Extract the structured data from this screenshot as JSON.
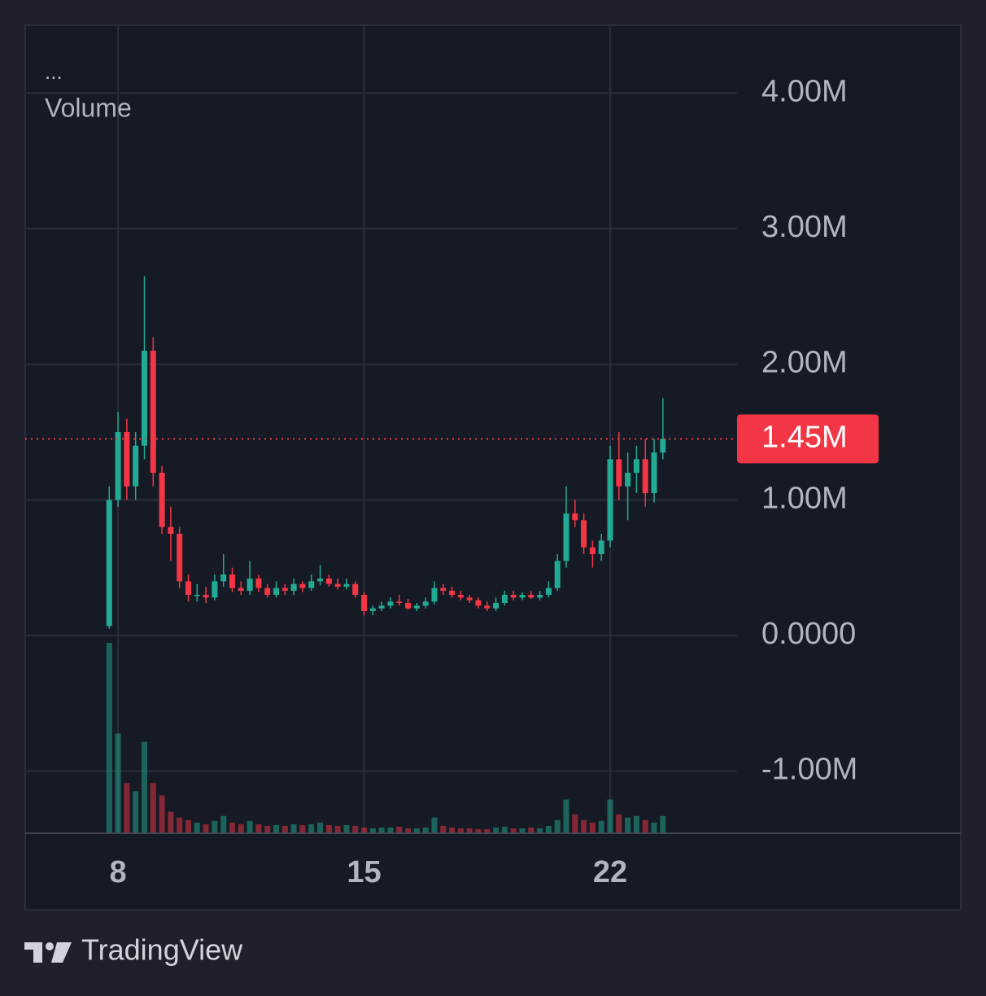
{
  "chart_data": {
    "type": "candlestick",
    "menu": "...",
    "indicator_label": "Volume",
    "x": [
      7.75,
      8.0,
      8.25,
      8.5,
      8.75,
      9.0,
      9.25,
      9.5,
      9.75,
      10.0,
      10.25,
      10.5,
      10.75,
      11.0,
      11.25,
      11.5,
      11.75,
      12.0,
      12.25,
      12.5,
      12.75,
      13.0,
      13.25,
      13.5,
      13.75,
      14.0,
      14.25,
      14.5,
      14.75,
      15.0,
      15.25,
      15.5,
      15.75,
      16.0,
      16.25,
      16.5,
      16.75,
      17.0,
      17.25,
      17.5,
      17.75,
      18.0,
      18.25,
      18.5,
      18.75,
      19.0,
      19.25,
      19.5,
      19.75,
      20.0,
      20.25,
      20.5,
      20.75,
      21.0,
      21.25,
      21.5,
      21.75,
      22.0,
      22.25,
      22.5,
      22.75,
      23.0,
      23.25,
      23.5
    ],
    "open": [
      0.07,
      1.0,
      1.5,
      1.1,
      1.4,
      2.1,
      1.2,
      0.8,
      0.75,
      0.4,
      0.3,
      0.3,
      0.28,
      0.4,
      0.45,
      0.35,
      0.33,
      0.42,
      0.35,
      0.3,
      0.35,
      0.33,
      0.38,
      0.35,
      0.4,
      0.42,
      0.38,
      0.36,
      0.38,
      0.3,
      0.18,
      0.2,
      0.22,
      0.25,
      0.24,
      0.2,
      0.22,
      0.25,
      0.35,
      0.33,
      0.3,
      0.28,
      0.26,
      0.22,
      0.2,
      0.24,
      0.3,
      0.28,
      0.3,
      0.28,
      0.3,
      0.35,
      0.55,
      0.9,
      0.85,
      0.65,
      0.6,
      0.7,
      1.3,
      1.1,
      1.2,
      1.3,
      1.05,
      1.35
    ],
    "high": [
      1.1,
      1.65,
      1.6,
      1.5,
      2.65,
      2.2,
      1.25,
      0.95,
      0.8,
      0.45,
      0.38,
      0.36,
      0.45,
      0.6,
      0.5,
      0.4,
      0.55,
      0.45,
      0.38,
      0.4,
      0.38,
      0.42,
      0.4,
      0.45,
      0.52,
      0.45,
      0.42,
      0.42,
      0.4,
      0.32,
      0.22,
      0.25,
      0.28,
      0.3,
      0.27,
      0.24,
      0.28,
      0.4,
      0.38,
      0.36,
      0.33,
      0.3,
      0.28,
      0.25,
      0.28,
      0.33,
      0.33,
      0.32,
      0.33,
      0.33,
      0.4,
      0.6,
      1.1,
      1.0,
      0.9,
      0.7,
      0.75,
      1.4,
      1.5,
      1.35,
      1.4,
      1.45,
      1.45,
      1.75
    ],
    "low": [
      0.05,
      0.95,
      1.0,
      1.0,
      1.3,
      1.1,
      0.75,
      0.55,
      0.35,
      0.25,
      0.25,
      0.24,
      0.26,
      0.36,
      0.32,
      0.3,
      0.3,
      0.32,
      0.28,
      0.28,
      0.3,
      0.3,
      0.32,
      0.33,
      0.37,
      0.36,
      0.34,
      0.34,
      0.28,
      0.15,
      0.15,
      0.18,
      0.2,
      0.22,
      0.19,
      0.18,
      0.2,
      0.23,
      0.3,
      0.28,
      0.26,
      0.24,
      0.2,
      0.18,
      0.18,
      0.22,
      0.26,
      0.26,
      0.27,
      0.26,
      0.28,
      0.33,
      0.5,
      0.8,
      0.6,
      0.5,
      0.55,
      0.65,
      1.0,
      0.85,
      1.05,
      0.95,
      0.98,
      1.3
    ],
    "close": [
      1.0,
      1.5,
      1.1,
      1.4,
      2.1,
      1.2,
      0.8,
      0.75,
      0.4,
      0.3,
      0.3,
      0.28,
      0.4,
      0.45,
      0.35,
      0.33,
      0.42,
      0.35,
      0.3,
      0.35,
      0.33,
      0.38,
      0.35,
      0.4,
      0.42,
      0.38,
      0.36,
      0.38,
      0.3,
      0.18,
      0.2,
      0.22,
      0.25,
      0.24,
      0.2,
      0.22,
      0.25,
      0.35,
      0.33,
      0.3,
      0.28,
      0.26,
      0.22,
      0.2,
      0.24,
      0.3,
      0.28,
      0.3,
      0.28,
      0.3,
      0.35,
      0.55,
      0.9,
      0.85,
      0.65,
      0.6,
      0.7,
      1.3,
      1.1,
      1.2,
      1.3,
      1.05,
      1.35,
      1.45
    ],
    "volume": [
      230,
      120,
      60,
      50,
      110,
      60,
      45,
      25,
      18,
      15,
      12,
      10,
      14,
      20,
      12,
      10,
      14,
      10,
      8,
      9,
      8,
      10,
      9,
      10,
      12,
      9,
      8,
      9,
      8,
      6,
      5,
      6,
      6,
      7,
      5,
      5,
      6,
      18,
      8,
      6,
      5,
      5,
      4,
      4,
      6,
      7,
      5,
      5,
      6,
      5,
      8,
      15,
      40,
      22,
      15,
      12,
      14,
      40,
      22,
      18,
      20,
      15,
      12,
      20
    ],
    "up_color": "#22ab94",
    "down_color": "#f23645",
    "xlim": [
      5.36,
      25.61
    ],
    "xticks": [
      8,
      15,
      22
    ],
    "ylim": [
      -1.452,
      4.5
    ],
    "yticks": [
      {
        "value": -1,
        "label": "-1.00M"
      },
      {
        "value": 0,
        "label": "0.0000"
      },
      {
        "value": 1,
        "label": "1.00M"
      },
      {
        "value": 2,
        "label": "2.00M"
      },
      {
        "value": 3,
        "label": "3.00M"
      },
      {
        "value": 4,
        "label": "4.00M"
      }
    ],
    "last_price": {
      "value": 1.45,
      "label": "1.45M"
    },
    "grid": true
  },
  "branding": "TradingView"
}
